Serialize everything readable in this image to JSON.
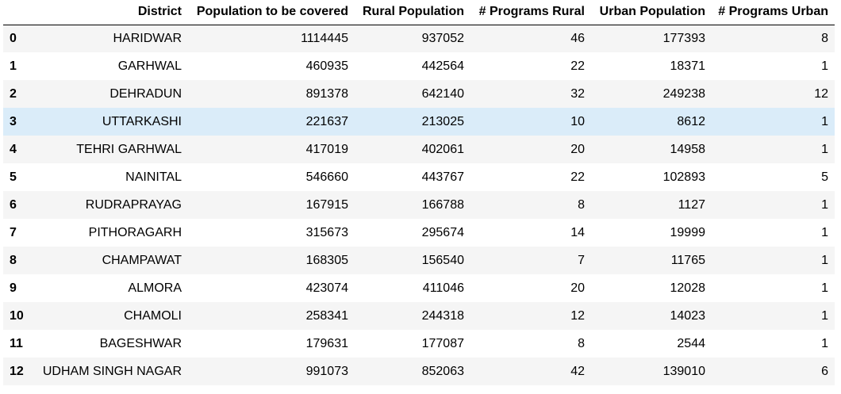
{
  "table": {
    "columns": [
      "",
      "District",
      "Population to be covered",
      "Rural Population",
      "# Programs Rural",
      "Urban Population",
      "# Programs Urban"
    ],
    "rows": [
      {
        "index": "0",
        "district": "HARIDWAR",
        "population": "1114445",
        "rural_population": "937052",
        "programs_rural": "46",
        "urban_population": "177393",
        "programs_urban": "8"
      },
      {
        "index": "1",
        "district": "GARHWAL",
        "population": "460935",
        "rural_population": "442564",
        "programs_rural": "22",
        "urban_population": "18371",
        "programs_urban": "1"
      },
      {
        "index": "2",
        "district": "DEHRADUN",
        "population": "891378",
        "rural_population": "642140",
        "programs_rural": "32",
        "urban_population": "249238",
        "programs_urban": "12"
      },
      {
        "index": "3",
        "district": "UTTARKASHI",
        "population": "221637",
        "rural_population": "213025",
        "programs_rural": "10",
        "urban_population": "8612",
        "programs_urban": "1"
      },
      {
        "index": "4",
        "district": "TEHRI GARHWAL",
        "population": "417019",
        "rural_population": "402061",
        "programs_rural": "20",
        "urban_population": "14958",
        "programs_urban": "1"
      },
      {
        "index": "5",
        "district": "NAINITAL",
        "population": "546660",
        "rural_population": "443767",
        "programs_rural": "22",
        "urban_population": "102893",
        "programs_urban": "5"
      },
      {
        "index": "6",
        "district": "RUDRAPRAYAG",
        "population": "167915",
        "rural_population": "166788",
        "programs_rural": "8",
        "urban_population": "1127",
        "programs_urban": "1"
      },
      {
        "index": "7",
        "district": "PITHORAGARH",
        "population": "315673",
        "rural_population": "295674",
        "programs_rural": "14",
        "urban_population": "19999",
        "programs_urban": "1"
      },
      {
        "index": "8",
        "district": "CHAMPAWAT",
        "population": "168305",
        "rural_population": "156540",
        "programs_rural": "7",
        "urban_population": "11765",
        "programs_urban": "1"
      },
      {
        "index": "9",
        "district": "ALMORA",
        "population": "423074",
        "rural_population": "411046",
        "programs_rural": "20",
        "urban_population": "12028",
        "programs_urban": "1"
      },
      {
        "index": "10",
        "district": "CHAMOLI",
        "population": "258341",
        "rural_population": "244318",
        "programs_rural": "12",
        "urban_population": "14023",
        "programs_urban": "1"
      },
      {
        "index": "11",
        "district": "BAGESHWAR",
        "population": "179631",
        "rural_population": "177087",
        "programs_rural": "8",
        "urban_population": "2544",
        "programs_urban": "1"
      },
      {
        "index": "12",
        "district": "UDHAM SINGH NAGAR",
        "population": "991073",
        "rural_population": "852063",
        "programs_rural": "42",
        "urban_population": "139010",
        "programs_urban": "6"
      }
    ],
    "hovered_row_index": 3
  },
  "colors": {
    "odd_row": "#f5f5f5",
    "even_row": "#ffffff",
    "hover_row": "#daecf9",
    "header_rule": "#000000"
  }
}
